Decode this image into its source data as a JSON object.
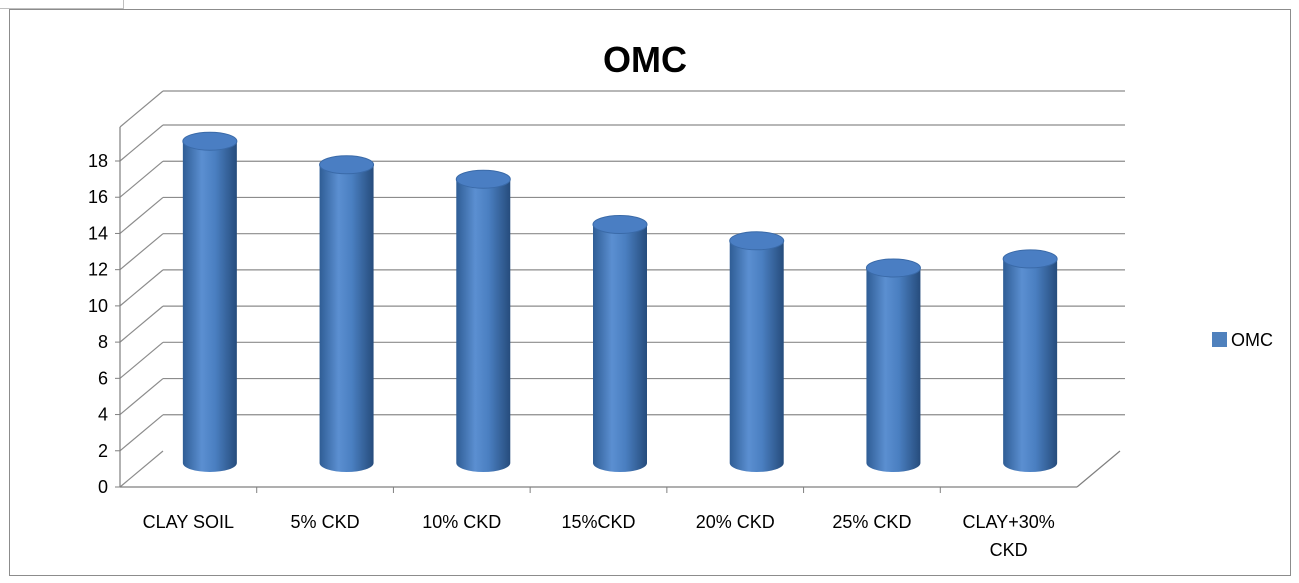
{
  "chart_data": {
    "type": "bar",
    "style": "3d-cylinder",
    "title": "OMC",
    "categories": [
      "CLAY SOIL",
      "5% CKD",
      "10% CKD",
      "15%CKD",
      "20% CKD",
      "25% CKD",
      "CLAY+30% CKD"
    ],
    "category_lines": [
      [
        "CLAY SOIL"
      ],
      [
        "5% CKD"
      ],
      [
        "10% CKD"
      ],
      [
        "15%CKD"
      ],
      [
        "20% CKD"
      ],
      [
        "25% CKD"
      ],
      [
        "CLAY+30%",
        "CKD"
      ]
    ],
    "series": [
      {
        "name": "OMC",
        "values": [
          18.1,
          16.8,
          16.0,
          13.5,
          12.6,
          11.1,
          11.6
        ],
        "color": "#4f81bd"
      }
    ],
    "ylim": [
      0,
      18
    ],
    "yticks": [
      0,
      2,
      4,
      6,
      8,
      10,
      12,
      14,
      16,
      18
    ],
    "grid": true,
    "legend_position": "right",
    "xlabel": "",
    "ylabel": ""
  }
}
